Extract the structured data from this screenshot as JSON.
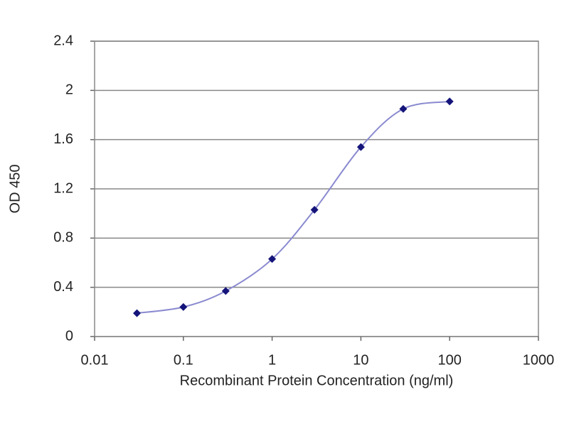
{
  "chart_data": {
    "type": "line",
    "xlabel": "Recombinant Protein Concentration (ng/ml)",
    "ylabel": "OD 450",
    "x": [
      0.03,
      0.1,
      0.3,
      1,
      3,
      10,
      30,
      100
    ],
    "values": [
      0.19,
      0.24,
      0.37,
      0.63,
      1.03,
      1.54,
      1.85,
      1.91
    ],
    "color": "#14147a",
    "line_color": "#8a8ad0",
    "xscale": "log",
    "xlim": [
      0.01,
      1000
    ],
    "xticks": [
      0.01,
      0.1,
      1,
      10,
      100,
      1000
    ],
    "ylim": [
      0,
      2.4
    ],
    "yticks": [
      0,
      0.4,
      0.8,
      1.2,
      1.6,
      2,
      2.4
    ],
    "grid": true
  }
}
